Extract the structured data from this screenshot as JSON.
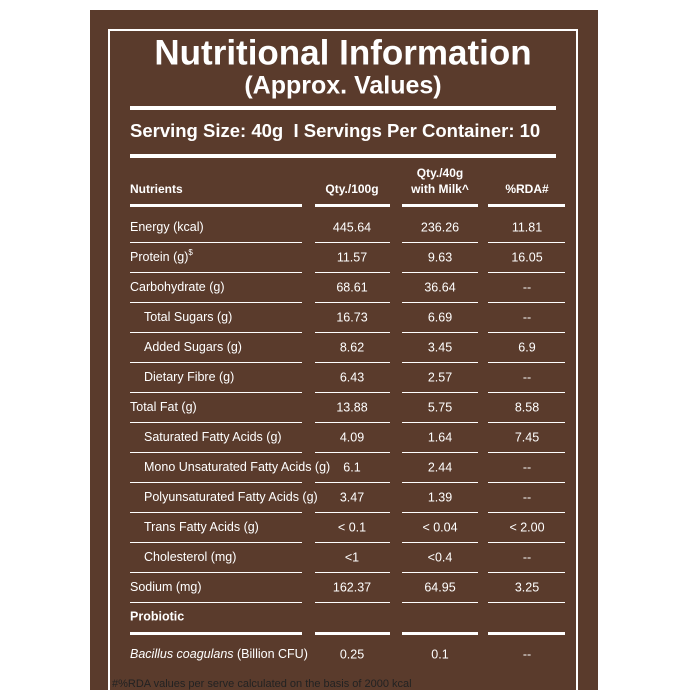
{
  "header": {
    "title": "Nutritional Information",
    "subtitle": "(Approx. Values)"
  },
  "serving": "Serving Size: 40g  I Servings Per Container: 10",
  "table": {
    "columns": [
      [
        "Nutrients"
      ],
      [
        "Qty./100g"
      ],
      [
        "Qty./40g",
        "with Milk^"
      ],
      [
        "%RDA#"
      ]
    ],
    "rows": [
      {
        "cells": [
          "Energy (kcal)",
          "445.64",
          "236.26",
          "11.81"
        ]
      },
      {
        "cells": [
          "Protein (g)",
          "11.57",
          "9.63",
          "16.05"
        ],
        "sup": "$"
      },
      {
        "cells": [
          "Carbohydrate (g)",
          "68.61",
          "36.64",
          "--"
        ]
      },
      {
        "cells": [
          "Total Sugars (g)",
          "16.73",
          "6.69",
          "--"
        ],
        "indent": true
      },
      {
        "cells": [
          "Added Sugars (g)",
          "8.62",
          "3.45",
          "6.9"
        ],
        "indent": true
      },
      {
        "cells": [
          "Dietary Fibre (g)",
          "6.43",
          "2.57",
          "--"
        ],
        "indent": true
      },
      {
        "cells": [
          "Total Fat (g)",
          "13.88",
          "5.75",
          "8.58"
        ]
      },
      {
        "cells": [
          "Saturated Fatty Acids (g)",
          "4.09",
          "1.64",
          "7.45"
        ],
        "indent": true
      },
      {
        "cells": [
          "Mono Unsaturated Fatty Acids (g)",
          "6.1",
          "2.44",
          "--"
        ],
        "indent": true
      },
      {
        "cells": [
          "Polyunsaturated Fatty Acids (g)",
          "3.47",
          "1.39",
          "--"
        ],
        "indent": true
      },
      {
        "cells": [
          "Trans Fatty Acids (g)",
          "< 0.1",
          "< 0.04",
          "< 2.00"
        ],
        "indent": true
      },
      {
        "cells": [
          "Cholesterol (mg)",
          "<1",
          "<0.4",
          "--"
        ],
        "indent": true
      },
      {
        "cells": [
          "Sodium (mg)",
          "162.37",
          "64.95",
          "3.25"
        ]
      }
    ],
    "section": "Probiotic",
    "probiotic_rows": [
      {
        "italic": "Bacillus coagulans",
        "cells": [
          " (Billion CFU)",
          "0.25",
          "0.1",
          "--"
        ]
      }
    ]
  },
  "footnote": "#%RDA values per serve calculated on the basis of 2000 kcal"
}
